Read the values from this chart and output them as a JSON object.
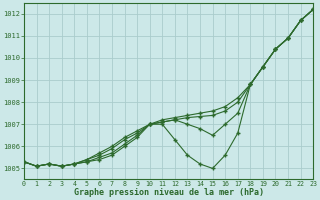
{
  "title": "Graphe pression niveau de la mer (hPa)",
  "x_labels": [
    "0",
    "1",
    "2",
    "3",
    "4",
    "5",
    "6",
    "7",
    "8",
    "9",
    "10",
    "11",
    "12",
    "13",
    "14",
    "15",
    "16",
    "17",
    "18",
    "19",
    "20",
    "21",
    "22",
    "23"
  ],
  "ylim": [
    1004.5,
    1012.5
  ],
  "yticks": [
    1005,
    1006,
    1007,
    1008,
    1009,
    1010,
    1011,
    1012
  ],
  "xlim": [
    0,
    23
  ],
  "bg_color": "#cce8e8",
  "grid_color": "#aacccc",
  "line_color": "#2d6a2d",
  "series": [
    [
      1005.3,
      1005.1,
      1005.2,
      1005.1,
      1005.2,
      1005.3,
      1005.4,
      1005.6,
      1006.0,
      1006.4,
      1007.0,
      1007.0,
      1006.3,
      1005.6,
      1005.2,
      1005.0,
      1005.6,
      1006.6,
      1008.8,
      1009.6,
      1010.4,
      1010.9,
      1011.7,
      1012.2
    ],
    [
      1005.3,
      1005.1,
      1005.2,
      1005.1,
      1005.2,
      1005.3,
      1005.5,
      1005.7,
      1006.1,
      1006.5,
      1007.0,
      1007.1,
      1007.2,
      1007.0,
      1006.8,
      1006.5,
      1007.0,
      1007.5,
      1008.8,
      1009.6,
      1010.4,
      1010.9,
      1011.7,
      1012.2
    ],
    [
      1005.3,
      1005.1,
      1005.2,
      1005.1,
      1005.2,
      1005.4,
      1005.6,
      1005.9,
      1006.3,
      1006.6,
      1007.0,
      1007.1,
      1007.2,
      1007.3,
      1007.35,
      1007.4,
      1007.6,
      1008.0,
      1008.8,
      1009.6,
      1010.4,
      1010.9,
      1011.7,
      1012.2
    ],
    [
      1005.3,
      1005.1,
      1005.2,
      1005.1,
      1005.2,
      1005.4,
      1005.7,
      1006.0,
      1006.4,
      1006.7,
      1007.0,
      1007.2,
      1007.3,
      1007.4,
      1007.5,
      1007.6,
      1007.8,
      1008.2,
      1008.8,
      1009.6,
      1010.4,
      1010.9,
      1011.7,
      1012.2
    ]
  ]
}
